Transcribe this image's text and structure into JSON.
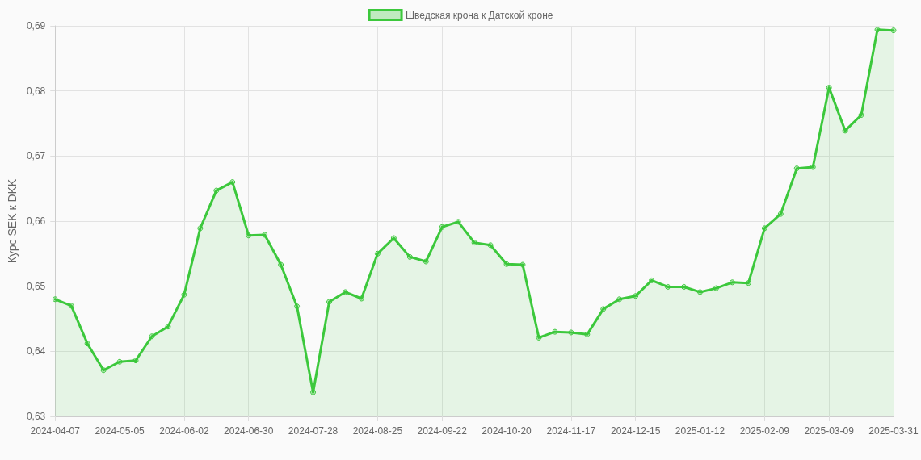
{
  "chart_data": {
    "type": "area",
    "ylabel": "Курс SEK к DKK",
    "categories": [
      "2024-04-07",
      null,
      null,
      null,
      "2024-05-05",
      null,
      null,
      null,
      "2024-06-02",
      null,
      null,
      null,
      "2024-06-30",
      null,
      null,
      null,
      "2024-07-28",
      null,
      null,
      null,
      "2024-08-25",
      null,
      null,
      null,
      "2024-09-22",
      null,
      null,
      null,
      "2024-10-20",
      null,
      null,
      null,
      "2024-11-17",
      null,
      null,
      null,
      "2024-12-15",
      null,
      null,
      null,
      "2025-01-12",
      null,
      null,
      null,
      "2025-02-09",
      null,
      null,
      null,
      "2025-03-09",
      null,
      null,
      null,
      "2025-03-31"
    ],
    "series": [
      {
        "name": "Шведская крона к Датской кроне",
        "color": "#3cc83c",
        "values": [
          0.648,
          0.647,
          0.6412,
          0.6371,
          0.6384,
          0.6386,
          0.6423,
          0.6438,
          0.6487,
          0.6589,
          0.6647,
          0.666,
          0.6578,
          0.6579,
          0.6533,
          0.6469,
          0.6337,
          0.6476,
          0.6491,
          0.6481,
          0.655,
          0.6574,
          0.6545,
          0.6538,
          0.6591,
          0.6599,
          0.6567,
          0.6563,
          0.6534,
          0.6533,
          0.6421,
          0.643,
          0.6429,
          0.6426,
          0.6465,
          0.648,
          0.6485,
          0.6509,
          0.6499,
          0.6499,
          0.6491,
          0.6497,
          0.6506,
          0.6505,
          0.6589,
          0.6611,
          0.6681,
          0.6683,
          0.6805,
          0.6739,
          0.6763,
          0.6894,
          0.6893
        ]
      }
    ],
    "ylim": [
      0.63,
      0.69
    ],
    "yticks": [
      {
        "value": 0.63,
        "label": "0,63"
      },
      {
        "value": 0.64,
        "label": "0,64"
      },
      {
        "value": 0.65,
        "label": "0,65"
      },
      {
        "value": 0.66,
        "label": "0,66"
      },
      {
        "value": 0.67,
        "label": "0,67"
      },
      {
        "value": 0.68,
        "label": "0,68"
      },
      {
        "value": 0.69,
        "label": "0,69"
      }
    ],
    "grid": true,
    "legend": "top",
    "marker": "circle",
    "line_style": "solid"
  }
}
